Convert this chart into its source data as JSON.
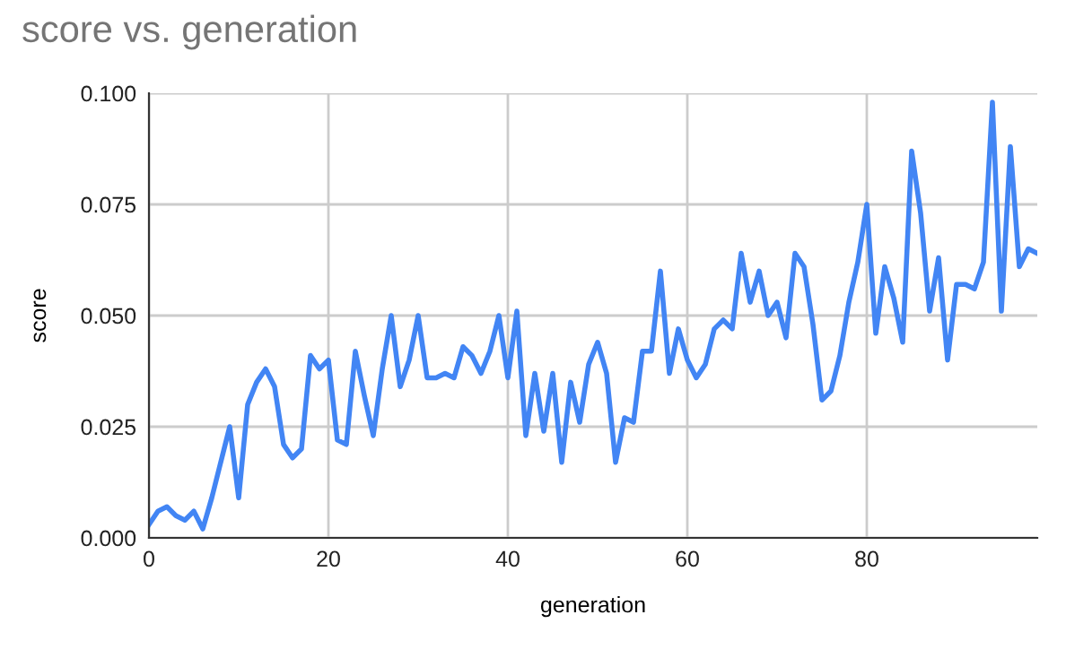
{
  "chart_data": {
    "type": "line",
    "title": "score vs. generation",
    "xlabel": "generation",
    "ylabel": "score",
    "x": [
      0,
      1,
      2,
      3,
      4,
      5,
      6,
      7,
      8,
      9,
      10,
      11,
      12,
      13,
      14,
      15,
      16,
      17,
      18,
      19,
      20,
      21,
      22,
      23,
      24,
      25,
      26,
      27,
      28,
      29,
      30,
      31,
      32,
      33,
      34,
      35,
      36,
      37,
      38,
      39,
      40,
      41,
      42,
      43,
      44,
      45,
      46,
      47,
      48,
      49,
      50,
      51,
      52,
      53,
      54,
      55,
      56,
      57,
      58,
      59,
      60,
      61,
      62,
      63,
      64,
      65,
      66,
      67,
      68,
      69,
      70,
      71,
      72,
      73,
      74,
      75,
      76,
      77,
      78,
      79,
      80,
      81,
      82,
      83,
      84,
      85,
      86,
      87,
      88,
      89,
      90,
      91,
      92,
      93,
      94,
      95,
      96,
      97,
      98,
      99
    ],
    "series": [
      {
        "color": "#4285f4",
        "values": [
          0.003,
          0.006,
          0.007,
          0.005,
          0.004,
          0.006,
          0.002,
          0.009,
          0.017,
          0.025,
          0.009,
          0.03,
          0.035,
          0.038,
          0.034,
          0.021,
          0.018,
          0.02,
          0.041,
          0.038,
          0.04,
          0.022,
          0.021,
          0.042,
          0.032,
          0.023,
          0.038,
          0.05,
          0.034,
          0.04,
          0.05,
          0.036,
          0.036,
          0.037,
          0.036,
          0.043,
          0.041,
          0.037,
          0.042,
          0.05,
          0.036,
          0.051,
          0.023,
          0.037,
          0.024,
          0.037,
          0.017,
          0.035,
          0.026,
          0.039,
          0.044,
          0.037,
          0.017,
          0.027,
          0.026,
          0.042,
          0.042,
          0.06,
          0.037,
          0.047,
          0.04,
          0.036,
          0.039,
          0.047,
          0.049,
          0.047,
          0.064,
          0.053,
          0.06,
          0.05,
          0.053,
          0.045,
          0.064,
          0.061,
          0.048,
          0.031,
          0.033,
          0.041,
          0.053,
          0.062,
          0.075,
          0.046,
          0.061,
          0.054,
          0.044,
          0.087,
          0.073,
          0.051,
          0.063,
          0.04,
          0.057,
          0.057,
          0.056,
          0.062,
          0.098,
          0.051,
          0.088,
          0.061,
          0.065,
          0.064
        ]
      }
    ],
    "xlim": [
      0,
      99
    ],
    "xticks": [
      0,
      20,
      40,
      60,
      80
    ],
    "ylim": [
      0,
      0.1
    ],
    "yticks": [
      {
        "value": 0,
        "label": "0.000"
      },
      {
        "value": 0.025,
        "label": "0.025"
      },
      {
        "value": 0.05,
        "label": "0.050"
      },
      {
        "value": 0.075,
        "label": "0.075"
      },
      {
        "value": 0.1,
        "label": "0.100"
      }
    ],
    "grid": true,
    "legend": false,
    "marker": "none",
    "line_style": "solid"
  }
}
